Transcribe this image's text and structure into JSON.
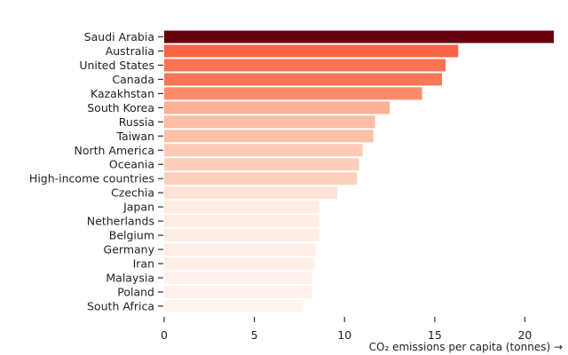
{
  "chart_data": {
    "type": "bar",
    "orientation": "horizontal",
    "title": "",
    "ylabel": "",
    "xlabel": "CO₂ emissions per capita (tonnes) →",
    "xlim": [
      0,
      21.7
    ],
    "xticks": [
      0,
      5,
      10,
      15,
      20
    ],
    "grid": false,
    "color_scale": "Reds",
    "categories": [
      "Saudi Arabia",
      "Australia",
      "United States",
      "Canada",
      "Kazakhstan",
      "South Korea",
      "Russia",
      "Taiwan",
      "North America",
      "Oceania",
      "High-income countries",
      "Czechia",
      "Japan",
      "Netherlands",
      "Belgium",
      "Germany",
      "Iran",
      "Malaysia",
      "Poland",
      "South Africa"
    ],
    "values": [
      21.6,
      16.3,
      15.6,
      15.4,
      14.3,
      12.5,
      11.7,
      11.6,
      11.0,
      10.8,
      10.7,
      9.6,
      8.6,
      8.6,
      8.6,
      8.4,
      8.3,
      8.2,
      8.2,
      7.7
    ]
  }
}
